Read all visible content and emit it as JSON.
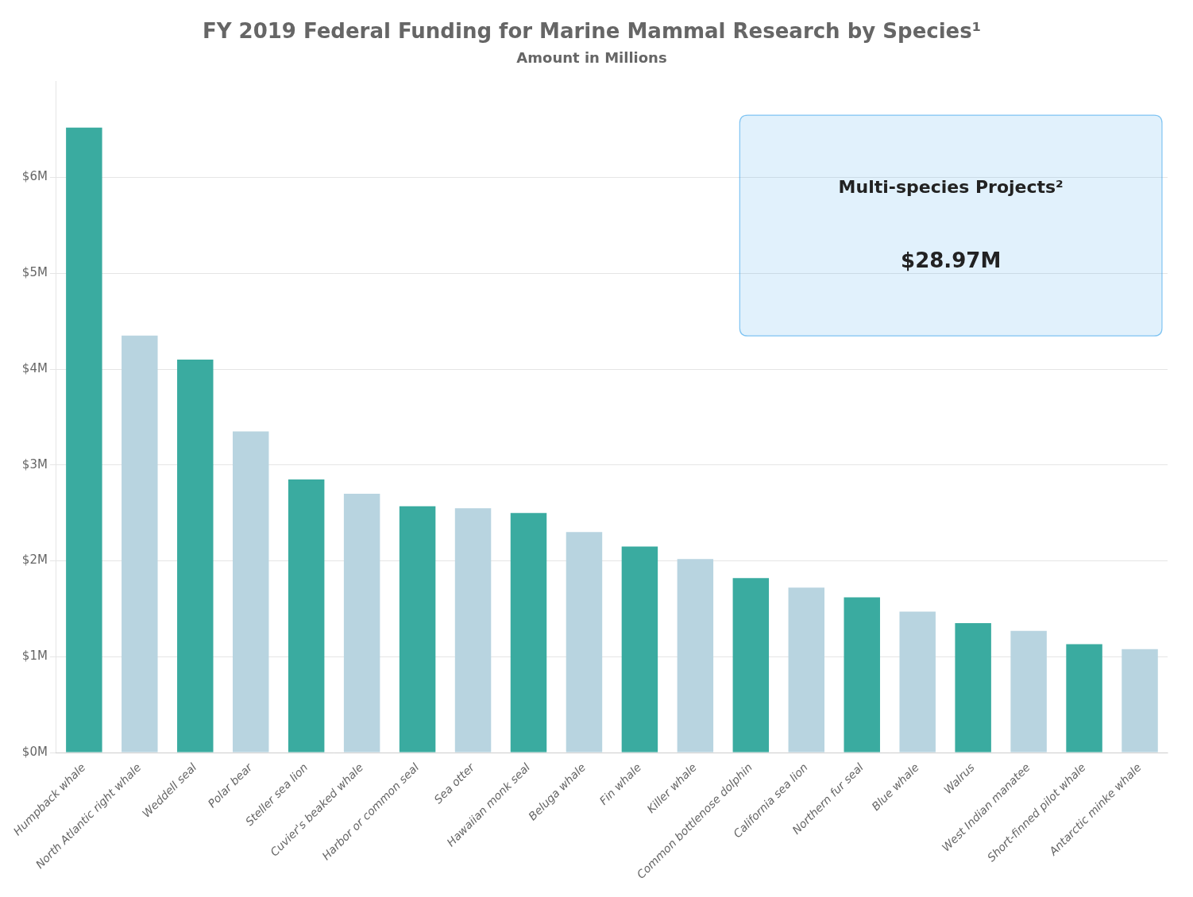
{
  "chart_data": {
    "type": "bar",
    "title": "FY 2019 Federal Funding for Marine Mammal Research by Species¹",
    "subtitle": "Amount in Millions",
    "categories": [
      "Humpback whale",
      "North Atlantic right whale",
      "Weddell seal",
      "Polar bear",
      "Steller sea lion",
      "Cuvier's beaked whale",
      "Harbor or common seal",
      "Sea otter",
      "Hawaiian monk seal",
      "Beluga whale",
      "Fin whale",
      "Killer whale",
      "Common bottlenose dolphin",
      "California sea lion",
      "Northern fur seal",
      "Blue whale",
      "Walrus",
      "West Indian manatee",
      "Short-finned pilot whale",
      "Antarctic minke whale"
    ],
    "values": [
      6.52,
      4.35,
      4.1,
      3.35,
      2.85,
      2.7,
      2.57,
      2.55,
      2.5,
      2.3,
      2.15,
      2.02,
      1.82,
      1.72,
      1.62,
      1.47,
      1.35,
      1.27,
      1.13,
      1.08
    ],
    "colors": [
      "#3aaba0",
      "#b8d4e0",
      "#3aaba0",
      "#b8d4e0",
      "#3aaba0",
      "#b8d4e0",
      "#3aaba0",
      "#b8d4e0",
      "#3aaba0",
      "#b8d4e0",
      "#3aaba0",
      "#b8d4e0",
      "#3aaba0",
      "#b8d4e0",
      "#3aaba0",
      "#b8d4e0",
      "#3aaba0",
      "#b8d4e0",
      "#3aaba0",
      "#b8d4e0"
    ],
    "ylim": [
      0,
      7.0
    ],
    "yticks": [
      {
        "value": 0,
        "label": "$0M"
      },
      {
        "value": 1,
        "label": "$1M"
      },
      {
        "value": 2,
        "label": "$2M"
      },
      {
        "value": 3,
        "label": "$3M"
      },
      {
        "value": 4,
        "label": "$4M"
      },
      {
        "value": 5,
        "label": "$5M"
      },
      {
        "value": 6,
        "label": "$6M"
      }
    ],
    "grid": true,
    "annotations": [
      "Multi-species Projects²",
      "$28.97M"
    ]
  }
}
